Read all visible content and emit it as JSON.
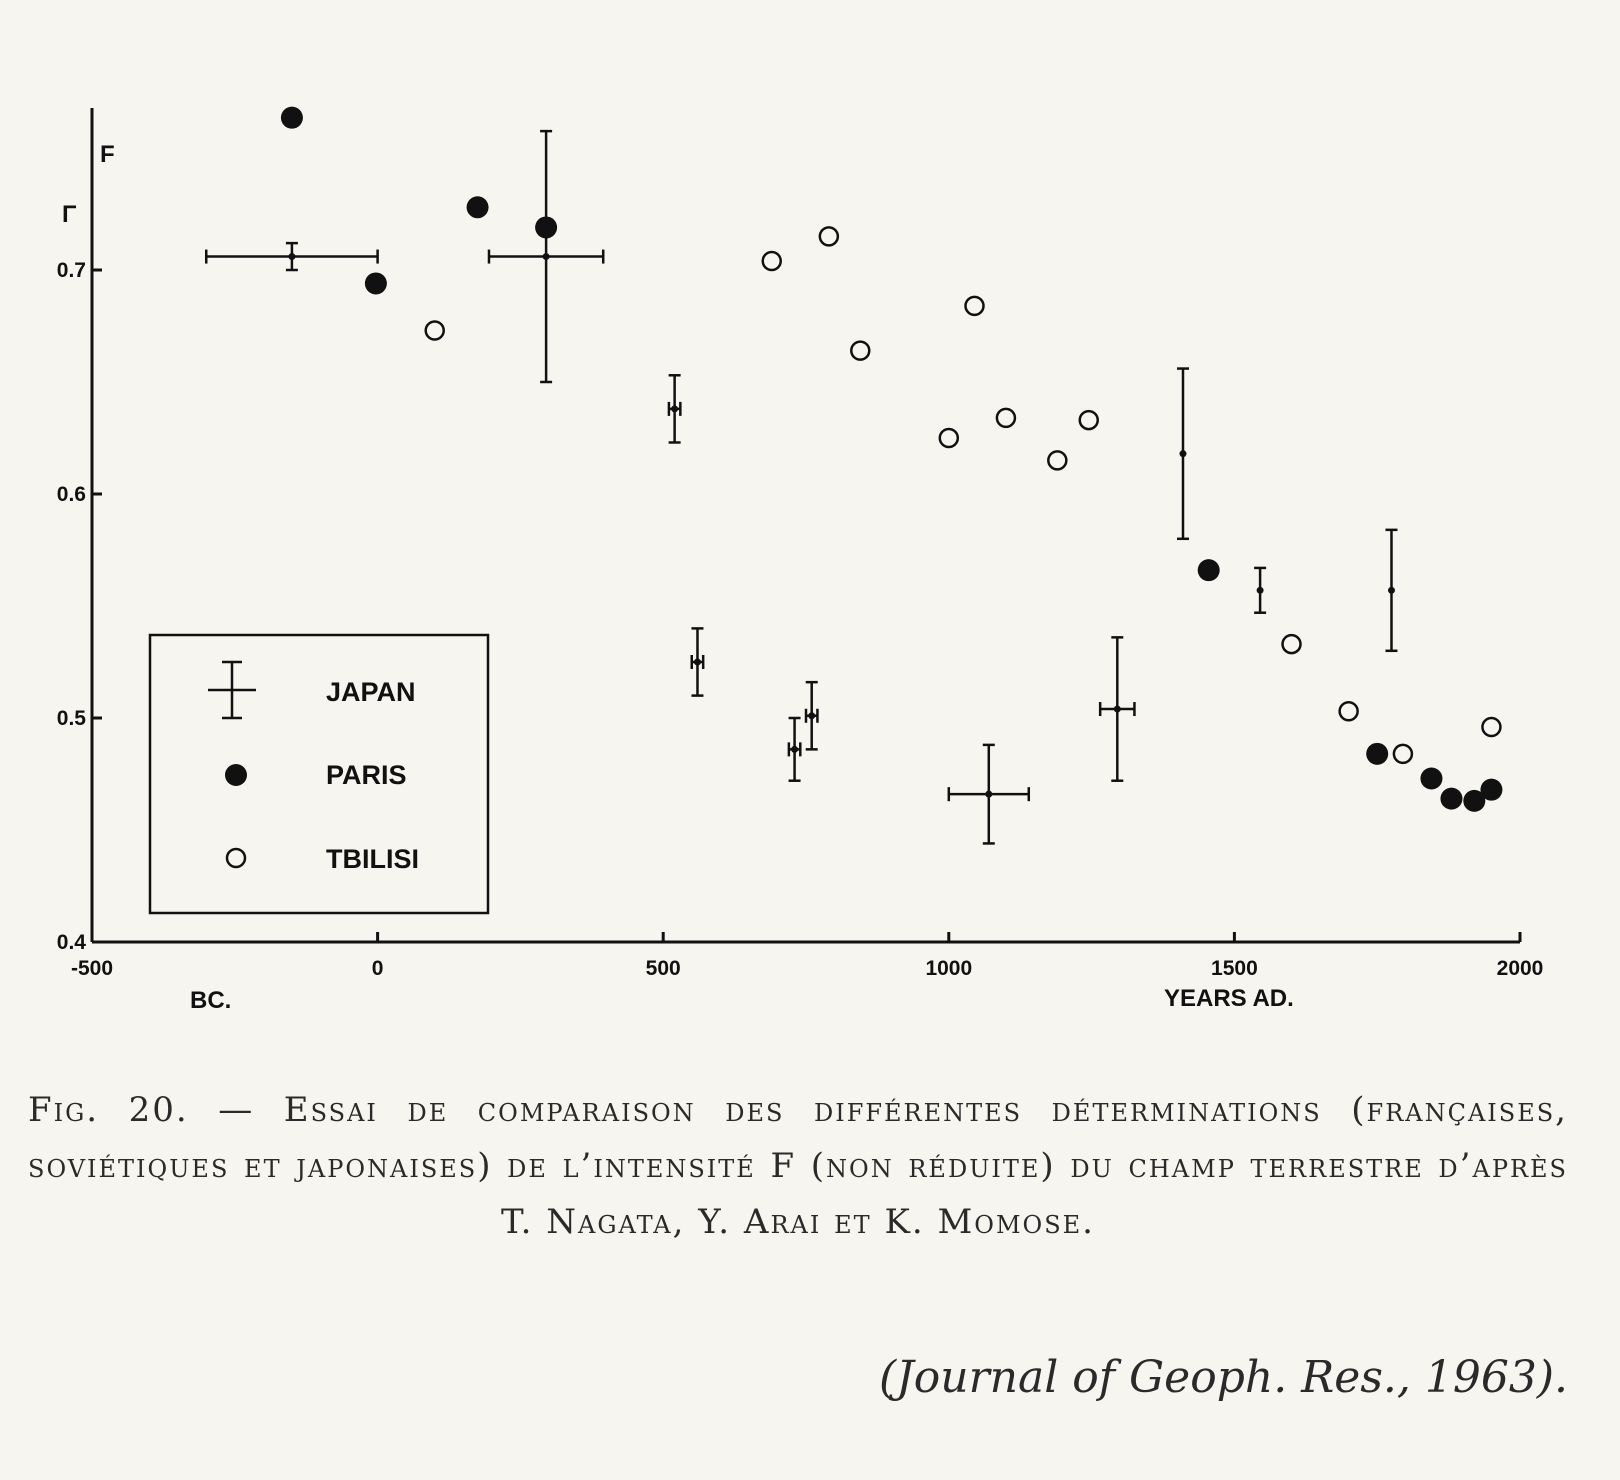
{
  "chart_data": {
    "type": "scatter",
    "title": "",
    "xlabel": "YEARS AD.",
    "x_label_bc": "BC.",
    "ylabel": "F",
    "y_gamma_label": "Γ",
    "xlim": [
      -500,
      2000
    ],
    "ylim": [
      0.4,
      0.78
    ],
    "x_ticks": [
      -500,
      0,
      500,
      1000,
      1500,
      2000
    ],
    "x_tick_labels": [
      "-500",
      "0",
      "500",
      "1000",
      "1500",
      "2000"
    ],
    "y_ticks": [
      0.4,
      0.5,
      0.6,
      0.7
    ],
    "y_tick_labels": [
      "0.4",
      "0.5",
      "0.6",
      "0.7"
    ],
    "grid": false,
    "legend_position": "bottom-left",
    "series": [
      {
        "name": "JAPAN",
        "marker": "cross-errorbar",
        "points": [
          {
            "x": -150,
            "y": 0.706,
            "xerr": 150,
            "yerr": 0.006
          },
          {
            "x": 295,
            "y": 0.706,
            "xerr": 100,
            "yerr": 0.056
          },
          {
            "x": 520,
            "y": 0.638,
            "xerr": 10,
            "yerr": 0.015
          },
          {
            "x": 560,
            "y": 0.525,
            "xerr": 10,
            "yerr": 0.015
          },
          {
            "x": 730,
            "y": 0.486,
            "xerr": 10,
            "yerr": 0.014
          },
          {
            "x": 760,
            "y": 0.501,
            "xerr": 10,
            "yerr": 0.015
          },
          {
            "x": 1070,
            "y": 0.466,
            "xerr": 70,
            "yerr": 0.022
          },
          {
            "x": 1295,
            "y": 0.504,
            "xerr": 30,
            "yerr": 0.032
          },
          {
            "x": 1410,
            "y": 0.618,
            "xerr": 0,
            "yerr": 0.038
          },
          {
            "x": 1545,
            "y": 0.557,
            "xerr": 0,
            "yerr": 0.01
          },
          {
            "x": 1775,
            "y": 0.557,
            "xerr": 0,
            "yerr": 0.027
          }
        ]
      },
      {
        "name": "PARIS",
        "marker": "filled-circle",
        "points": [
          {
            "x": -150,
            "y": 0.768
          },
          {
            "x": -3,
            "y": 0.694
          },
          {
            "x": 175,
            "y": 0.728
          },
          {
            "x": 295,
            "y": 0.719
          },
          {
            "x": 1455,
            "y": 0.566
          },
          {
            "x": 1750,
            "y": 0.484
          },
          {
            "x": 1845,
            "y": 0.473
          },
          {
            "x": 1880,
            "y": 0.464
          },
          {
            "x": 1920,
            "y": 0.463
          },
          {
            "x": 1950,
            "y": 0.468
          }
        ]
      },
      {
        "name": "TBILISI",
        "marker": "open-circle",
        "points": [
          {
            "x": 100,
            "y": 0.673
          },
          {
            "x": 690,
            "y": 0.704
          },
          {
            "x": 790,
            "y": 0.715
          },
          {
            "x": 845,
            "y": 0.664
          },
          {
            "x": 1000,
            "y": 0.625
          },
          {
            "x": 1045,
            "y": 0.684
          },
          {
            "x": 1100,
            "y": 0.634
          },
          {
            "x": 1190,
            "y": 0.615
          },
          {
            "x": 1245,
            "y": 0.633
          },
          {
            "x": 1600,
            "y": 0.533
          },
          {
            "x": 1700,
            "y": 0.503
          },
          {
            "x": 1795,
            "y": 0.484
          },
          {
            "x": 1950,
            "y": 0.496
          }
        ]
      }
    ]
  },
  "caption": "Fig. 20. — Essai de comparaison des différentes déterminations (françaises, soviétiques et japonaises) de l’intensité F (non réduite) du champ terrestre d’après T. Nagata, Y. Arai et K. Momose.",
  "source": "(Journal of Geoph. Res., 1963)."
}
